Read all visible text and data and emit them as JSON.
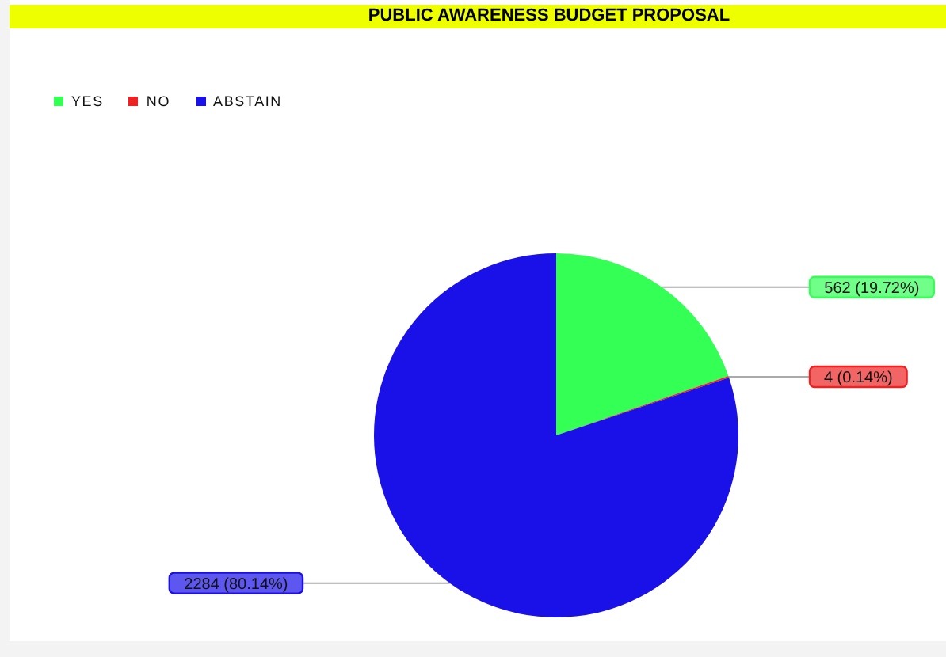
{
  "chart_data": {
    "type": "pie",
    "title": "PUBLIC AWARENESS BUDGET PROPOSAL",
    "categories": [
      "YES",
      "NO",
      "ABSTAIN"
    ],
    "values": [
      562,
      4,
      2284
    ],
    "colors": [
      "#33ff55",
      "#ee2222",
      "#1a10e8"
    ],
    "value_labels": [
      "562 (19.72%)",
      "4 (0.14%)",
      "2284 (80.14%)"
    ],
    "legend": "top left"
  }
}
